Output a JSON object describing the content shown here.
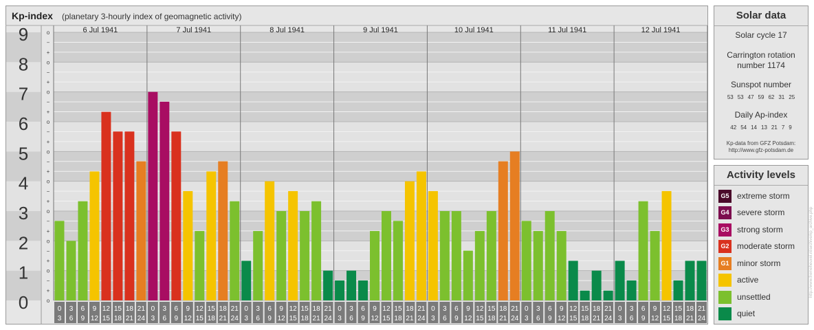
{
  "header": {
    "title": "Kp-index",
    "subtitle": "(planetary 3-hourly index of geomagnetic activity)"
  },
  "chart_data": {
    "type": "bar",
    "title": "Kp-index",
    "subtitle": "(planetary 3-hourly index of geomagnetic activity)",
    "ylim": [
      0,
      9
    ],
    "y_ticks": [
      "0",
      "1",
      "2",
      "3",
      "4",
      "5",
      "6",
      "7",
      "8",
      "9"
    ],
    "y_minor_labels": [
      "o",
      "+",
      "−",
      "o"
    ],
    "days": [
      "6 Jul 1941",
      "7 Jul 1941",
      "8 Jul 1941",
      "9 Jul 1941",
      "10 Jul 1941",
      "11 Jul 1941",
      "12 Jul 1941"
    ],
    "interval_labels": [
      [
        "0",
        "3"
      ],
      [
        "3",
        "6"
      ],
      [
        "6",
        "9"
      ],
      [
        "9",
        "12"
      ],
      [
        "12",
        "15"
      ],
      [
        "15",
        "18"
      ],
      [
        "18",
        "21"
      ],
      [
        "21",
        "24"
      ]
    ],
    "values": [
      [
        2.67,
        2.0,
        3.33,
        4.33,
        6.33,
        5.67,
        5.67,
        4.67
      ],
      [
        7.0,
        6.67,
        5.67,
        3.67,
        2.33,
        4.33,
        4.67,
        3.33
      ],
      [
        1.33,
        2.33,
        4.0,
        3.0,
        3.67,
        3.0,
        3.33,
        1.0
      ],
      [
        0.67,
        1.0,
        0.67,
        2.33,
        3.0,
        2.67,
        4.0,
        4.33
      ],
      [
        3.67,
        3.0,
        3.0,
        1.67,
        2.33,
        3.0,
        4.67,
        5.0
      ],
      [
        2.67,
        2.33,
        3.0,
        2.33,
        1.33,
        0.33,
        1.0,
        0.33
      ],
      [
        1.33,
        0.67,
        3.33,
        2.33,
        3.67,
        0.67,
        1.33,
        1.33
      ]
    ],
    "grid": true,
    "legend": "right"
  },
  "solar": {
    "title": "Solar data",
    "cycle": "Solar cycle 17",
    "carrington_line1": "Carrington rotation",
    "carrington_line2": "number 1174",
    "sunspot_label": "Sunspot number",
    "sunspot_values": [
      "53",
      "53",
      "47",
      "59",
      "62",
      "31",
      "25"
    ],
    "ap_label": "Daily Ap-index",
    "ap_values": [
      "42",
      "54",
      "14",
      "13",
      "21",
      "7",
      "9"
    ],
    "source_line1": "Kp-data from GFZ Potsdam:",
    "source_line2": "http://www.gfz-potsdam.de"
  },
  "activity": {
    "title": "Activity levels",
    "levels": [
      {
        "code": "G5",
        "label": "extreme storm",
        "color": "#4a0a2a"
      },
      {
        "code": "G4",
        "label": "severe storm",
        "color": "#7c0d4e"
      },
      {
        "code": "G3",
        "label": "strong storm",
        "color": "#a80d62"
      },
      {
        "code": "G2",
        "label": "moderate storm",
        "color": "#d9311e"
      },
      {
        "code": "G1",
        "label": "minor storm",
        "color": "#e67e22"
      },
      {
        "code": "",
        "label": "active",
        "color": "#f5c400"
      },
      {
        "code": "",
        "label": "unsettled",
        "color": "#7cc02e"
      },
      {
        "code": "",
        "label": "quiet",
        "color": "#0a8a4a"
      }
    ]
  },
  "watermark": "http://www.fremeheuvel.nl/archive/kp_archive.php"
}
